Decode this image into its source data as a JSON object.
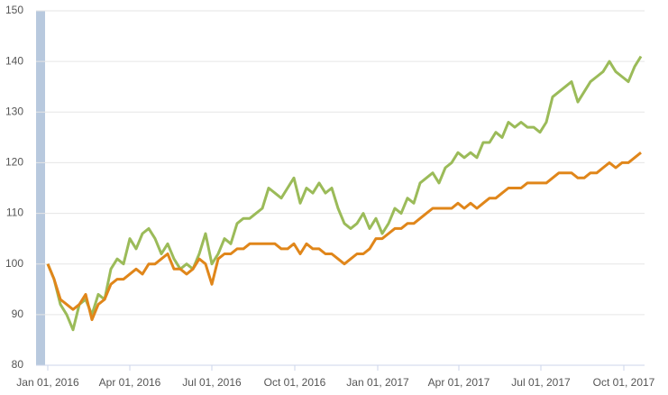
{
  "chart_data": {
    "type": "line",
    "x": [
      "2016-01-01",
      "2016-01-08",
      "2016-01-15",
      "2016-01-22",
      "2016-01-29",
      "2016-02-05",
      "2016-02-12",
      "2016-02-19",
      "2016-02-26",
      "2016-03-04",
      "2016-03-11",
      "2016-03-18",
      "2016-03-25",
      "2016-04-01",
      "2016-04-08",
      "2016-04-15",
      "2016-04-22",
      "2016-04-29",
      "2016-05-06",
      "2016-05-13",
      "2016-05-20",
      "2016-05-27",
      "2016-06-03",
      "2016-06-10",
      "2016-06-17",
      "2016-06-24",
      "2016-07-01",
      "2016-07-08",
      "2016-07-15",
      "2016-07-22",
      "2016-07-29",
      "2016-08-05",
      "2016-08-12",
      "2016-08-19",
      "2016-08-26",
      "2016-09-02",
      "2016-09-09",
      "2016-09-16",
      "2016-09-23",
      "2016-09-30",
      "2016-10-07",
      "2016-10-14",
      "2016-10-21",
      "2016-10-28",
      "2016-11-04",
      "2016-11-11",
      "2016-11-18",
      "2016-11-25",
      "2016-12-02",
      "2016-12-09",
      "2016-12-16",
      "2016-12-23",
      "2016-12-30",
      "2017-01-06",
      "2017-01-13",
      "2017-01-20",
      "2017-01-27",
      "2017-02-03",
      "2017-02-10",
      "2017-02-17",
      "2017-02-24",
      "2017-03-03",
      "2017-03-10",
      "2017-03-17",
      "2017-03-24",
      "2017-03-31",
      "2017-04-07",
      "2017-04-14",
      "2017-04-21",
      "2017-04-28",
      "2017-05-05",
      "2017-05-12",
      "2017-05-19",
      "2017-05-26",
      "2017-06-02",
      "2017-06-09",
      "2017-06-16",
      "2017-06-23",
      "2017-06-30",
      "2017-07-07",
      "2017-07-14",
      "2017-07-21",
      "2017-07-28",
      "2017-08-04",
      "2017-08-11",
      "2017-08-18",
      "2017-08-25",
      "2017-09-01",
      "2017-09-08",
      "2017-09-15",
      "2017-09-22",
      "2017-09-29",
      "2017-10-06",
      "2017-10-13",
      "2017-10-20"
    ],
    "series": [
      {
        "color": "#9bbb59",
        "values": [
          100,
          97,
          92,
          90,
          87,
          92,
          93,
          90,
          94,
          93,
          99,
          101,
          100,
          105,
          103,
          106,
          107,
          105,
          102,
          104,
          101,
          99,
          100,
          99,
          102,
          106,
          100,
          102,
          105,
          104,
          108,
          109,
          109,
          110,
          111,
          115,
          114,
          113,
          115,
          117,
          112,
          115,
          114,
          116,
          114,
          115,
          111,
          108,
          107,
          108,
          110,
          107,
          109,
          106,
          108,
          111,
          110,
          113,
          112,
          116,
          117,
          118,
          116,
          119,
          120,
          122,
          121,
          122,
          121,
          124,
          124,
          126,
          125,
          128,
          127,
          128,
          127,
          127,
          126,
          128,
          133,
          134,
          135,
          136,
          132,
          134,
          136,
          137,
          138,
          140,
          138,
          137,
          136,
          139,
          141
        ]
      },
      {
        "color": "#e0861a",
        "values": [
          100,
          97,
          93,
          92,
          91,
          92,
          94,
          89,
          92,
          93,
          96,
          97,
          97,
          98,
          99,
          98,
          100,
          100,
          101,
          102,
          99,
          99,
          98,
          99,
          101,
          100,
          96,
          101,
          102,
          102,
          103,
          103,
          104,
          104,
          104,
          104,
          104,
          103,
          103,
          104,
          102,
          104,
          103,
          103,
          102,
          102,
          101,
          100,
          101,
          102,
          102,
          103,
          105,
          105,
          106,
          107,
          107,
          108,
          108,
          109,
          110,
          111,
          111,
          111,
          111,
          112,
          111,
          112,
          111,
          112,
          113,
          113,
          114,
          115,
          115,
          115,
          116,
          116,
          116,
          116,
          117,
          118,
          118,
          118,
          117,
          117,
          118,
          118,
          119,
          120,
          119,
          120,
          120,
          121,
          122
        ]
      }
    ],
    "xlim": [
      "2015-12-19",
      "2017-10-24"
    ],
    "xticks": [
      {
        "value": "2016-01-01",
        "label": "Jan 01, 2016"
      },
      {
        "value": "2016-04-01",
        "label": "Apr 01, 2016"
      },
      {
        "value": "2016-07-01",
        "label": "Jul 01, 2016"
      },
      {
        "value": "2016-10-01",
        "label": "Oct 01, 2016"
      },
      {
        "value": "2017-01-01",
        "label": "Jan 01, 2017"
      },
      {
        "value": "2017-04-01",
        "label": "Apr 01, 2017"
      },
      {
        "value": "2017-07-01",
        "label": "Jul 01, 2017"
      },
      {
        "value": "2017-10-01",
        "label": "Oct 01, 2017"
      }
    ],
    "ylim": [
      80,
      150
    ],
    "yticks": [
      80,
      90,
      100,
      110,
      120,
      130,
      140,
      150
    ],
    "grid": true
  }
}
